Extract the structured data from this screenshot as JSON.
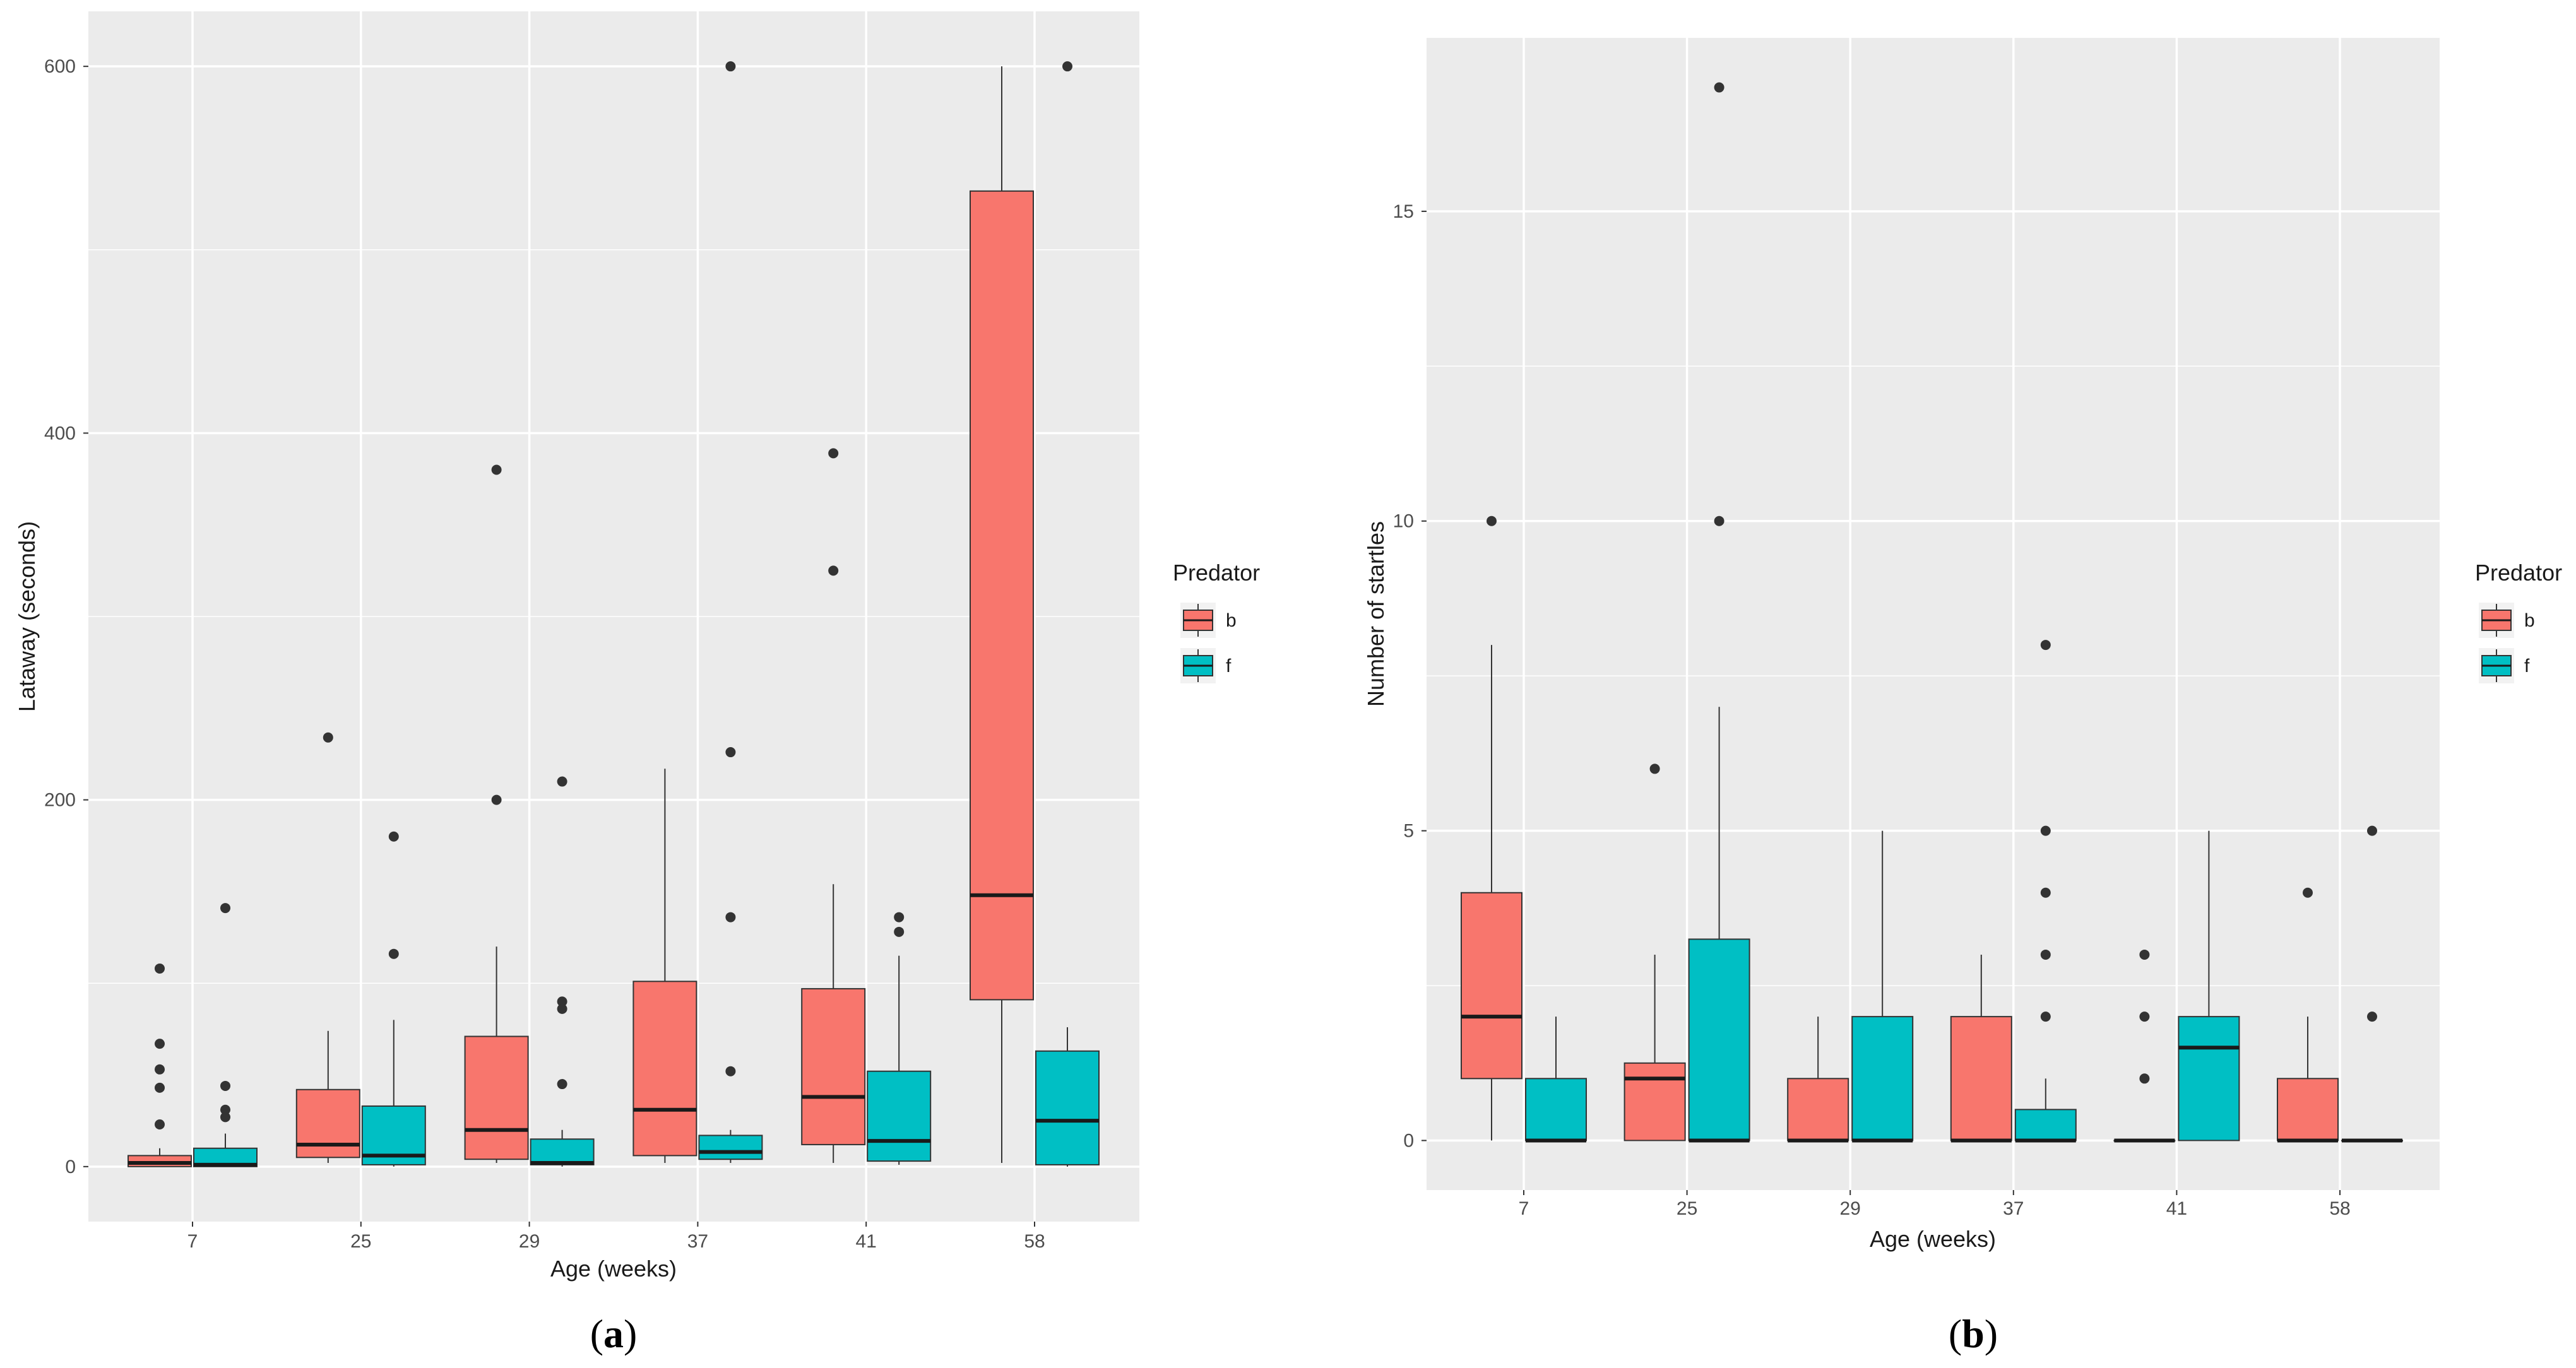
{
  "chart_data": [
    {
      "type": "boxplot",
      "panel_label": "(a)",
      "panel_label_letter": "a",
      "xlabel": "Age (weeks)",
      "ylabel": "Lataway (seconds)",
      "ylim": [
        -30,
        630
      ],
      "yticks": [
        0,
        200,
        400,
        600
      ],
      "categories": [
        "7",
        "25",
        "29",
        "37",
        "41",
        "58"
      ],
      "legend": {
        "title": "Predator",
        "entries": [
          "b",
          "f"
        ]
      },
      "colors": {
        "b": "#F8766D",
        "f": "#00BFC4"
      },
      "series": [
        {
          "name": "b",
          "boxes": [
            {
              "category": "7",
              "lower_whisker": 0,
              "q1": 0,
              "median": 2,
              "q3": 6,
              "upper_whisker": 10,
              "outliers": [
                108,
                67,
                53,
                43,
                23
              ]
            },
            {
              "category": "25",
              "lower_whisker": 2,
              "q1": 5,
              "median": 12,
              "q3": 42,
              "upper_whisker": 74,
              "outliers": [
                234
              ]
            },
            {
              "category": "29",
              "lower_whisker": 2,
              "q1": 4,
              "median": 20,
              "q3": 71,
              "upper_whisker": 120,
              "outliers": [
                380,
                200
              ]
            },
            {
              "category": "37",
              "lower_whisker": 2,
              "q1": 6,
              "median": 31,
              "q3": 101,
              "upper_whisker": 217,
              "outliers": []
            },
            {
              "category": "41",
              "lower_whisker": 2,
              "q1": 12,
              "median": 38,
              "q3": 97,
              "upper_whisker": 154,
              "outliers": [
                389,
                325
              ]
            },
            {
              "category": "58",
              "lower_whisker": 2,
              "q1": 91,
              "median": 148,
              "q3": 532,
              "upper_whisker": 600,
              "outliers": []
            }
          ]
        },
        {
          "name": "f",
          "boxes": [
            {
              "category": "7",
              "lower_whisker": 0,
              "q1": 0,
              "median": 1,
              "q3": 10,
              "upper_whisker": 18,
              "outliers": [
                141,
                44,
                31,
                27
              ]
            },
            {
              "category": "25",
              "lower_whisker": 0,
              "q1": 1,
              "median": 6,
              "q3": 33,
              "upper_whisker": 80,
              "outliers": [
                180,
                116
              ]
            },
            {
              "category": "29",
              "lower_whisker": 0,
              "q1": 1,
              "median": 2,
              "q3": 15,
              "upper_whisker": 20,
              "outliers": [
                210,
                90,
                86,
                45
              ]
            },
            {
              "category": "37",
              "lower_whisker": 2,
              "q1": 4,
              "median": 8,
              "q3": 17,
              "upper_whisker": 20,
              "outliers": [
                600,
                226,
                136,
                52
              ]
            },
            {
              "category": "41",
              "lower_whisker": 1,
              "q1": 3,
              "median": 14,
              "q3": 52,
              "upper_whisker": 115,
              "outliers": [
                136,
                128
              ]
            },
            {
              "category": "58",
              "lower_whisker": 0,
              "q1": 1,
              "median": 25,
              "q3": 63,
              "upper_whisker": 76,
              "outliers": [
                600
              ]
            }
          ]
        }
      ]
    },
    {
      "type": "boxplot",
      "panel_label": "(b)",
      "panel_label_letter": "b",
      "xlabel": "Age (weeks)",
      "ylabel": "Number of startles",
      "ylim": [
        -0.8,
        17.8
      ],
      "yticks": [
        0,
        5,
        10,
        15
      ],
      "categories": [
        "7",
        "25",
        "29",
        "37",
        "41",
        "58"
      ],
      "legend": {
        "title": "Predator",
        "entries": [
          "b",
          "f"
        ]
      },
      "colors": {
        "b": "#F8766D",
        "f": "#00BFC4"
      },
      "series": [
        {
          "name": "b",
          "boxes": [
            {
              "category": "7",
              "lower_whisker": 0,
              "q1": 1,
              "median": 2,
              "q3": 4,
              "upper_whisker": 8,
              "outliers": [
                10
              ]
            },
            {
              "category": "25",
              "lower_whisker": 0,
              "q1": 0,
              "median": 1,
              "q3": 1.25,
              "upper_whisker": 3,
              "outliers": [
                6
              ]
            },
            {
              "category": "29",
              "lower_whisker": 0,
              "q1": 0,
              "median": 0,
              "q3": 1,
              "upper_whisker": 2,
              "outliers": []
            },
            {
              "category": "37",
              "lower_whisker": 0,
              "q1": 0,
              "median": 0,
              "q3": 2,
              "upper_whisker": 3,
              "outliers": []
            },
            {
              "category": "41",
              "lower_whisker": 0,
              "q1": 0,
              "median": 0,
              "q3": 0,
              "upper_whisker": 0,
              "outliers": [
                3,
                2,
                1
              ]
            },
            {
              "category": "58",
              "lower_whisker": 0,
              "q1": 0,
              "median": 0,
              "q3": 1,
              "upper_whisker": 2,
              "outliers": [
                4
              ]
            }
          ]
        },
        {
          "name": "f",
          "boxes": [
            {
              "category": "7",
              "lower_whisker": 0,
              "q1": 0,
              "median": 0,
              "q3": 1,
              "upper_whisker": 2,
              "outliers": []
            },
            {
              "category": "25",
              "lower_whisker": 0,
              "q1": 0,
              "median": 0,
              "q3": 3.25,
              "upper_whisker": 7,
              "outliers": [
                17,
                10
              ]
            },
            {
              "category": "29",
              "lower_whisker": 0,
              "q1": 0,
              "median": 0,
              "q3": 2,
              "upper_whisker": 5,
              "outliers": []
            },
            {
              "category": "37",
              "lower_whisker": 0,
              "q1": 0,
              "median": 0,
              "q3": 0.5,
              "upper_whisker": 1,
              "outliers": [
                8,
                5,
                4,
                3,
                2
              ]
            },
            {
              "category": "41",
              "lower_whisker": 0,
              "q1": 0,
              "median": 1.5,
              "q3": 2,
              "upper_whisker": 5,
              "outliers": []
            },
            {
              "category": "58",
              "lower_whisker": 0,
              "q1": 0,
              "median": 0,
              "q3": 0,
              "upper_whisker": 0,
              "outliers": [
                5,
                2
              ]
            }
          ]
        }
      ]
    }
  ]
}
